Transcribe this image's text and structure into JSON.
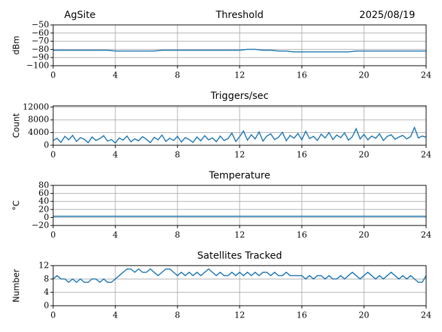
{
  "chart_data": [
    {
      "type": "line",
      "title_left": "AgSite",
      "title": "Threshold",
      "title_right": "2025/08/19",
      "y_label": "dBm",
      "color": "#1f77b4",
      "grid": true,
      "xlim": [
        0,
        24
      ],
      "xticks": [
        0,
        4,
        8,
        12,
        16,
        20,
        24
      ],
      "ylim": [
        -100,
        -50
      ],
      "yticks": [
        {
          "value": -100,
          "label": "−100"
        },
        {
          "value": -90,
          "label": "−90"
        },
        {
          "value": -80,
          "label": "−80"
        },
        {
          "value": -70,
          "label": "−70"
        },
        {
          "value": -60,
          "label": "−60"
        },
        {
          "value": -50,
          "label": "−50"
        }
      ],
      "x": [
        0,
        0.5,
        1,
        1.5,
        2,
        2.5,
        3,
        3.5,
        4,
        4.5,
        5,
        5.5,
        6,
        6.5,
        7,
        7.5,
        8,
        8.5,
        9,
        9.5,
        10,
        10.5,
        11,
        11.5,
        12,
        12.5,
        13,
        13.5,
        14,
        14.5,
        15,
        15.5,
        16,
        16.5,
        17,
        17.5,
        18,
        18.5,
        19,
        19.5,
        20,
        20.5,
        21,
        21.5,
        22,
        22.5,
        23,
        23.5,
        24
      ],
      "values": [
        -81,
        -81,
        -81,
        -81,
        -81,
        -81,
        -81,
        -81,
        -82,
        -82,
        -82,
        -82,
        -82,
        -82,
        -81,
        -81,
        -81,
        -81,
        -81,
        -81,
        -81,
        -81,
        -81,
        -81,
        -81,
        -80,
        -80,
        -81,
        -81,
        -82,
        -82,
        -83,
        -83,
        -83,
        -83,
        -83,
        -83,
        -83,
        -83,
        -82,
        -82,
        -82,
        -82,
        -82,
        -82,
        -82,
        -82,
        -82,
        -82
      ]
    },
    {
      "type": "line",
      "title": "Triggers/sec",
      "y_label": "Count",
      "color": "#1f77b4",
      "grid": true,
      "xlim": [
        0,
        24
      ],
      "xticks": [
        0,
        4,
        8,
        12,
        16,
        20,
        24
      ],
      "ylim": [
        0,
        12400
      ],
      "yticks": [
        0,
        4000,
        8000,
        12000
      ],
      "x": [
        0,
        0.25,
        0.5,
        0.75,
        1,
        1.25,
        1.5,
        1.75,
        2,
        2.25,
        2.5,
        2.75,
        3,
        3.25,
        3.5,
        3.75,
        4,
        4.25,
        4.5,
        4.75,
        5,
        5.25,
        5.5,
        5.75,
        6,
        6.25,
        6.5,
        6.75,
        7,
        7.25,
        7.5,
        7.75,
        8,
        8.25,
        8.5,
        8.75,
        9,
        9.25,
        9.5,
        9.75,
        10,
        10.25,
        10.5,
        10.75,
        11,
        11.25,
        11.5,
        11.75,
        12,
        12.25,
        12.5,
        12.75,
        13,
        13.25,
        13.5,
        13.75,
        14,
        14.25,
        14.5,
        14.75,
        15,
        15.25,
        15.5,
        15.75,
        16,
        16.25,
        16.5,
        16.75,
        17,
        17.25,
        17.5,
        17.75,
        18,
        18.25,
        18.5,
        18.75,
        19,
        19.25,
        19.5,
        19.75,
        20,
        20.25,
        20.5,
        20.75,
        21,
        21.25,
        21.5,
        21.75,
        22,
        22.25,
        22.5,
        22.75,
        23,
        23.25,
        23.5,
        23.75,
        24
      ],
      "values": [
        1500,
        2200,
        900,
        2800,
        1700,
        3100,
        1200,
        2400,
        1900,
        800,
        2600,
        1500,
        2100,
        3000,
        1300,
        1800,
        700,
        2300,
        1600,
        2900,
        1100,
        2000,
        1400,
        2700,
        1900,
        800,
        2500,
        1700,
        3200,
        1200,
        2200,
        1500,
        2800,
        1000,
        2400,
        1800,
        900,
        2600,
        1400,
        3000,
        1700,
        2300,
        1100,
        2900,
        1500,
        2100,
        3800,
        1200,
        2700,
        4500,
        1600,
        3300,
        2000,
        4200,
        1300,
        2900,
        3600,
        1800,
        2500,
        4100,
        1400,
        3100,
        2200,
        3700,
        1700,
        4400,
        2100,
        2800,
        1500,
        3500,
        2300,
        4000,
        1800,
        3200,
        2400,
        3900,
        1600,
        2700,
        5200,
        2000,
        3400,
        1700,
        2900,
        2200,
        3600,
        1500,
        2800,
        3300,
        1900,
        2600,
        3100,
        2000,
        2700,
        5600,
        2300,
        2900,
        2500
      ]
    },
    {
      "type": "line",
      "title": "Temperature",
      "y_label": "°C",
      "color": "#1f77b4",
      "grid": true,
      "xlim": [
        0,
        24
      ],
      "xticks": [
        0,
        4,
        8,
        12,
        16,
        20,
        24
      ],
      "ylim": [
        -20,
        80
      ],
      "yticks": [
        {
          "value": -20,
          "label": "−20"
        },
        0,
        20,
        40,
        60,
        80
      ],
      "x": [
        0,
        2,
        4,
        6,
        8,
        10,
        12,
        14,
        16,
        18,
        20,
        22,
        24
      ],
      "values": [
        3,
        3,
        3,
        3,
        3,
        3,
        3,
        3,
        3,
        3,
        3,
        3,
        3
      ]
    },
    {
      "type": "line",
      "title": "Satellites Tracked",
      "y_label": "Number",
      "color": "#1f77b4",
      "grid": true,
      "xlim": [
        0,
        24
      ],
      "xticks": [
        0,
        4,
        8,
        12,
        16,
        20,
        24
      ],
      "ylim": [
        0,
        12
      ],
      "yticks": [
        0,
        4,
        8,
        12
      ],
      "x": [
        0,
        0.25,
        0.5,
        0.75,
        1,
        1.25,
        1.5,
        1.75,
        2,
        2.25,
        2.5,
        2.75,
        3,
        3.25,
        3.5,
        3.75,
        4,
        4.25,
        4.5,
        4.75,
        5,
        5.25,
        5.5,
        5.75,
        6,
        6.25,
        6.5,
        6.75,
        7,
        7.25,
        7.5,
        7.75,
        8,
        8.25,
        8.5,
        8.75,
        9,
        9.25,
        9.5,
        9.75,
        10,
        10.25,
        10.5,
        10.75,
        11,
        11.25,
        11.5,
        11.75,
        12,
        12.25,
        12.5,
        12.75,
        13,
        13.25,
        13.5,
        13.75,
        14,
        14.25,
        14.5,
        14.75,
        15,
        15.25,
        15.5,
        15.75,
        16,
        16.25,
        16.5,
        16.75,
        17,
        17.25,
        17.5,
        17.75,
        18,
        18.25,
        18.5,
        18.75,
        19,
        19.25,
        19.5,
        19.75,
        20,
        20.25,
        20.5,
        20.75,
        21,
        21.25,
        21.5,
        21.75,
        22,
        22.25,
        22.5,
        22.75,
        23,
        23.25,
        23.5,
        23.75,
        24
      ],
      "values": [
        8,
        9,
        8,
        8,
        7,
        8,
        7,
        8,
        7,
        7,
        8,
        8,
        7,
        8,
        7,
        7,
        8,
        9,
        10,
        11,
        11,
        10,
        11,
        10,
        10,
        11,
        10,
        9,
        10,
        11,
        11,
        10,
        9,
        10,
        9,
        10,
        9,
        10,
        9,
        10,
        11,
        10,
        9,
        10,
        9,
        9,
        10,
        9,
        10,
        9,
        10,
        9,
        10,
        9,
        10,
        10,
        9,
        10,
        9,
        9,
        10,
        9,
        9,
        9,
        9,
        8,
        9,
        8,
        9,
        9,
        8,
        9,
        8,
        8,
        9,
        8,
        9,
        10,
        9,
        8,
        9,
        10,
        9,
        8,
        9,
        8,
        9,
        10,
        9,
        8,
        9,
        8,
        9,
        8,
        7,
        7,
        9
      ]
    }
  ]
}
